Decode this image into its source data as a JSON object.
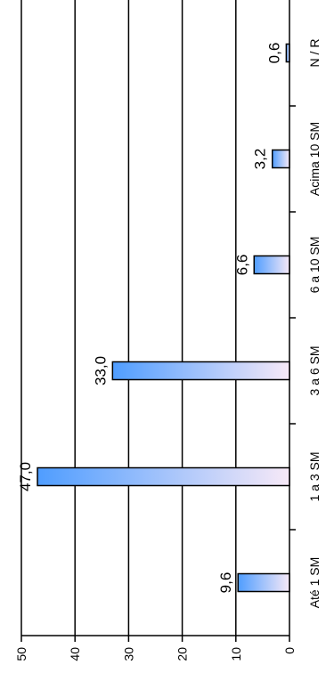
{
  "chart_data": {
    "type": "bar",
    "orientation": "horizontal-rotated",
    "categories": [
      "Até 1 SM",
      "1 a 3 SM",
      "3 a 6 SM",
      "6 a 10 SM",
      "Acima 10 SM",
      "N / R"
    ],
    "values": [
      9.6,
      47.0,
      33.0,
      6.6,
      3.2,
      0.6
    ],
    "value_labels": [
      "9,6",
      "47,0",
      "33,0",
      "6,6",
      "3,2",
      "0,6"
    ],
    "value_ticks": [
      0,
      10,
      20,
      30,
      40,
      50
    ],
    "value_tick_labels": [
      "0",
      "10",
      "20",
      "30",
      "40",
      "50"
    ],
    "ylim": [
      0,
      50
    ],
    "grid": true,
    "legend": "none",
    "title": "",
    "xlabel": "",
    "ylabel": "",
    "colors": {
      "bar_gradient_start": "#4f9dff",
      "bar_gradient_end": "#f7e9f7",
      "bar_stroke": "#000000",
      "grid": "#000000"
    }
  }
}
